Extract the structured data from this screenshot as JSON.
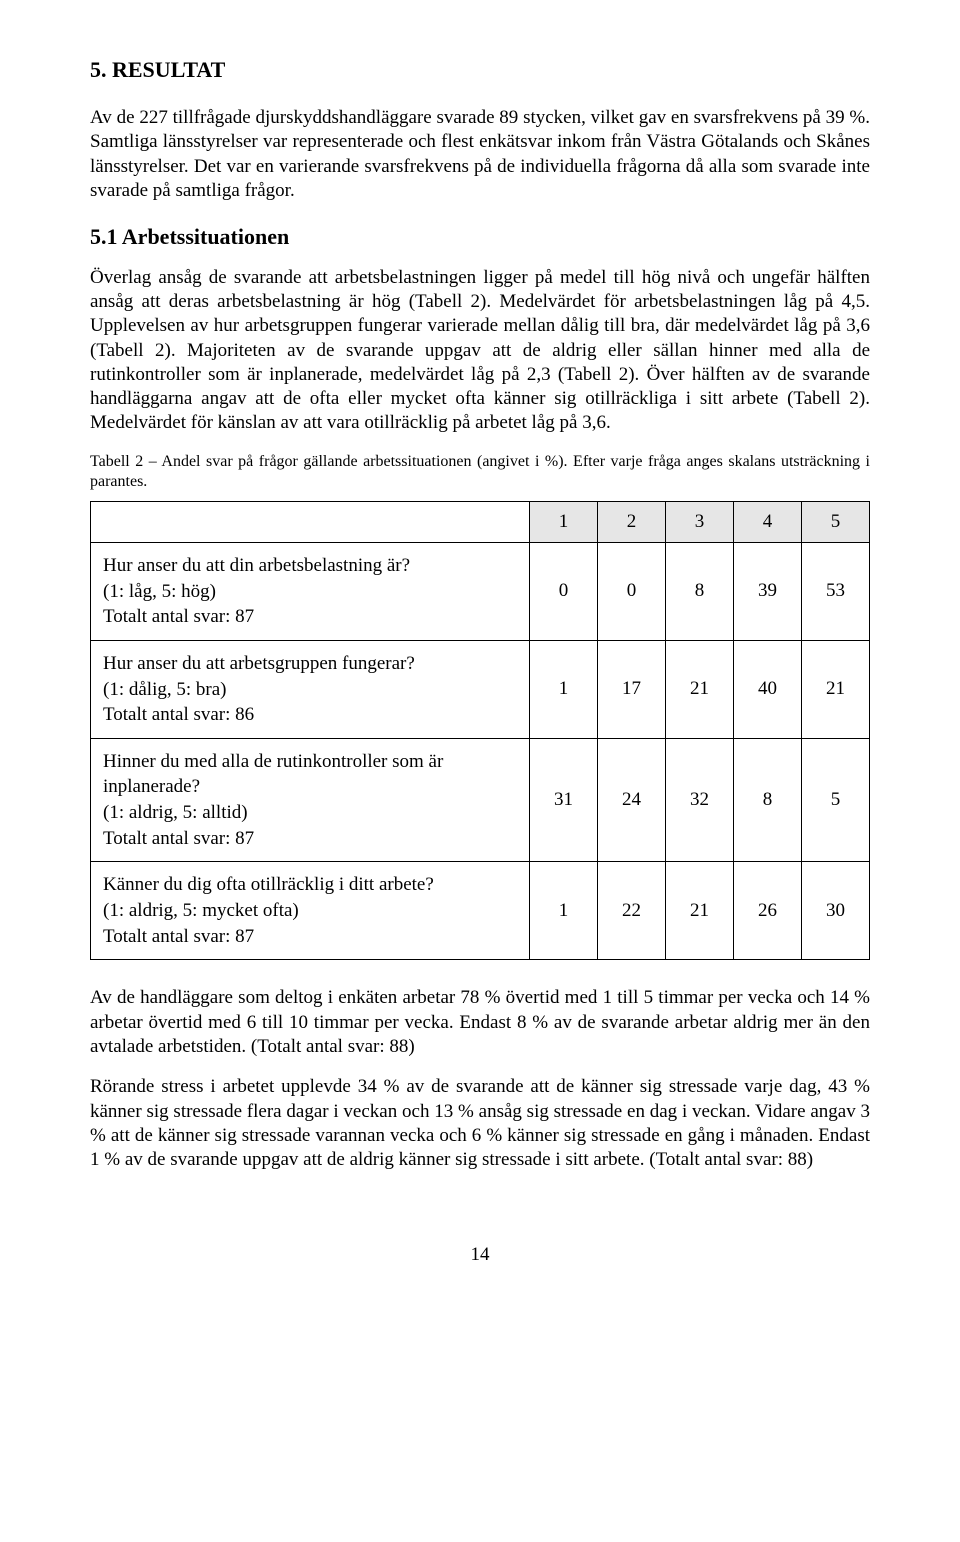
{
  "heading1": "5. RESULTAT",
  "para1": "Av de 227 tillfrågade djurskyddshandläggare svarade 89 stycken, vilket gav en svarsfrekvens på 39 %. Samtliga länsstyrelser var representerade och flest enkätsvar inkom från Västra Götalands och Skånes länsstyrelser. Det var en varierande svarsfrekvens på de individuella frågorna då alla som svarade inte svarade på samtliga frågor.",
  "heading2": "5.1 Arbetssituationen",
  "para2": "Överlag ansåg de svarande att arbetsbelastningen ligger på medel till hög nivå och ungefär hälften ansåg att deras arbetsbelastning är hög (Tabell 2). Medelvärdet för arbets­belastningen låg på 4,5. Upplevelsen av hur arbetsgruppen fungerar varierade mellan dålig till bra, där medelvärdet låg på 3,6 (Tabell 2). Majoriteten av de svarande uppgav att de aldrig eller sällan hinner med alla de rutinkontroller som är inplanerade, medelvärdet låg på 2,3 (Tabell 2). Över hälften av de svarande handläggarna angav att de ofta eller mycket ofta känner sig otillräckliga i sitt arbete (Tabell 2). Medelvärdet för känslan av att vara otillräcklig på arbetet låg på 3,6.",
  "tableCaption": "Tabell 2 – Andel svar på frågor gällande arbetssituationen (angivet i %). Efter varje fråga anges skalans utsträckning i parantes.",
  "table": {
    "headers": [
      "1",
      "2",
      "3",
      "4",
      "5"
    ],
    "rows": [
      {
        "q1": "Hur anser du att din arbetsbelastning är?",
        "q2": "(1: låg, 5: hög)",
        "q3": "Totalt antal svar: 87",
        "v": [
          "0",
          "0",
          "8",
          "39",
          "53"
        ]
      },
      {
        "q1": "Hur anser du att arbetsgruppen fungerar?",
        "q2": "(1: dålig, 5: bra)",
        "q3": "Totalt antal svar: 86",
        "v": [
          "1",
          "17",
          "21",
          "40",
          "21"
        ]
      },
      {
        "q1": "Hinner du med alla de rutinkontroller som är inplanerade?",
        "q2": "(1: aldrig, 5: alltid)",
        "q3": "Totalt antal svar: 87",
        "v": [
          "31",
          "24",
          "32",
          "8",
          "5"
        ]
      },
      {
        "q1": "Känner du dig ofta otillräcklig i ditt arbete?",
        "q2": "(1: aldrig, 5: mycket ofta)",
        "q3": "Totalt antal svar: 87",
        "v": [
          "1",
          "22",
          "21",
          "26",
          "30"
        ]
      }
    ]
  },
  "para3": "Av de handläggare som deltog i enkäten arbetar 78 % övertid med 1 till 5 timmar per vecka och 14 % arbetar övertid med 6 till 10 timmar per vecka. Endast 8 % av de svarande arbetar aldrig mer än den avtalade arbetstiden. (Totalt antal svar: 88)",
  "para4": "Rörande stress i arbetet upplevde 34 % av de svarande att de känner sig stressade varje dag, 43 % känner sig stressade flera dagar i veckan och 13 % ansåg sig stressade en dag i veckan. Vidare angav 3 % att de känner sig stressade varannan vecka och 6 % känner sig stressade en gång i månaden. Endast 1 % av de svarande uppgav att de aldrig känner sig stressade i sitt arbete. (Totalt antal svar: 88)",
  "pageNumber": "14"
}
